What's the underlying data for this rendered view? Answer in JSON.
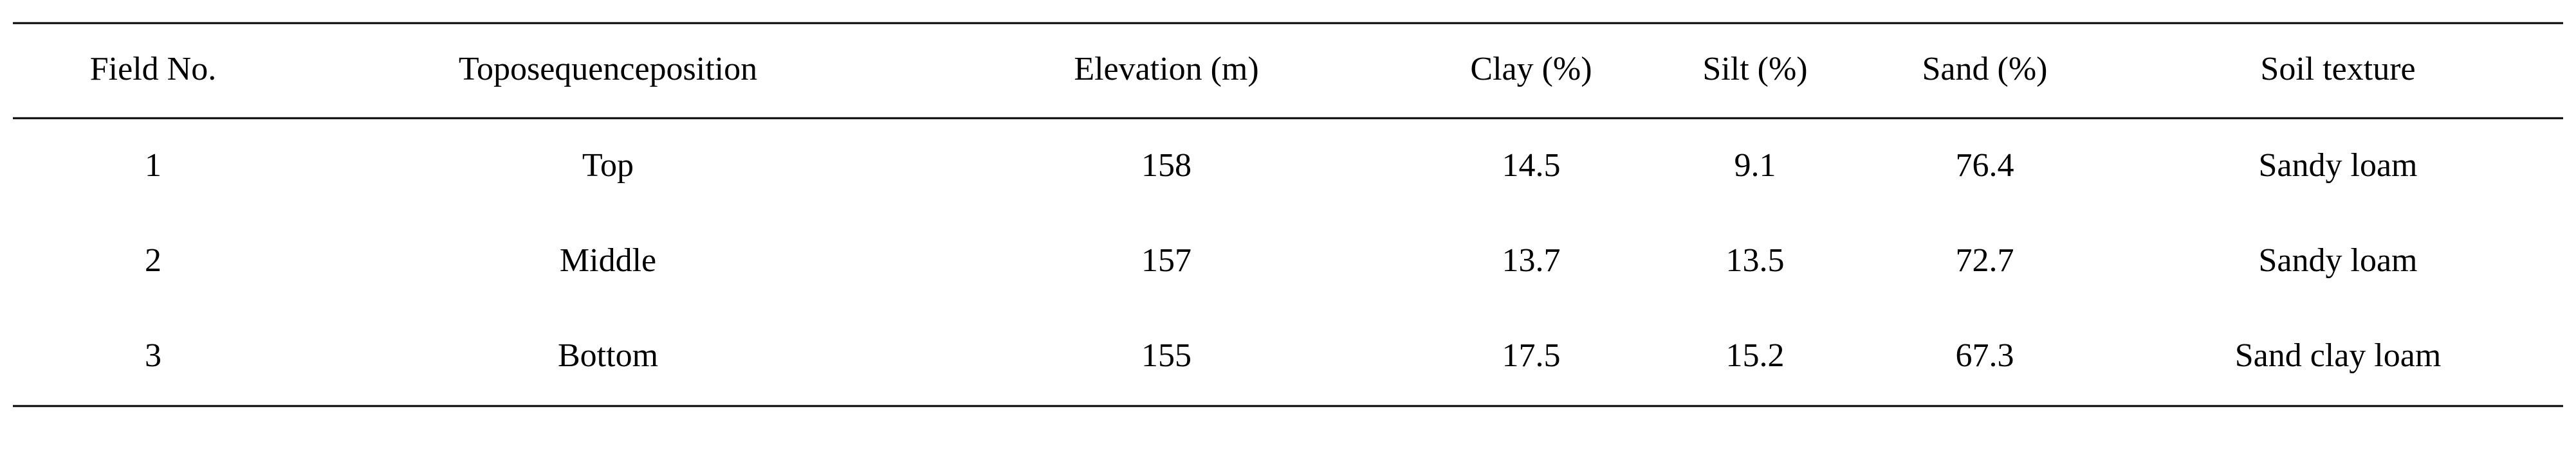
{
  "table": {
    "header": [
      "Field No.",
      "Toposequenceposition",
      "Elevation (m)",
      "Clay (%)",
      "Silt (%)",
      "Sand (%)",
      "Soil texture"
    ],
    "rows": [
      [
        1,
        "Top",
        158,
        14.5,
        9.1,
        76.4,
        "Sandy loam"
      ],
      [
        2,
        "Middle",
        157,
        13.7,
        13.5,
        72.7,
        "Sandy loam"
      ],
      [
        3,
        "Bottom",
        155,
        17.5,
        15.2,
        67.3,
        "Sand clay loam"
      ]
    ]
  }
}
